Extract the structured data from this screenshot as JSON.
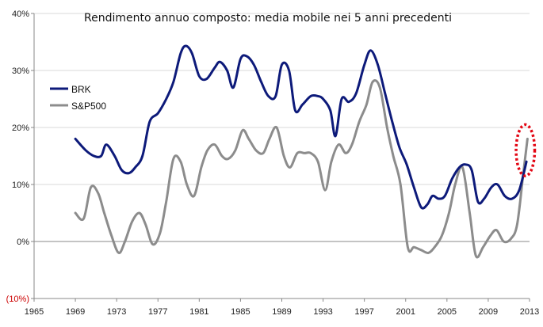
{
  "chart_data": {
    "type": "line",
    "title": "Rendimento annuo composto: media mobile nei 5 anni precedenti",
    "xlim": [
      1965,
      2013
    ],
    "ylim": [
      -10,
      40
    ],
    "x_ticks": [
      1965,
      1969,
      1973,
      1977,
      1981,
      1985,
      1989,
      1993,
      1997,
      2001,
      2005,
      2009,
      2013
    ],
    "y_ticks": [
      {
        "value": 40,
        "label": "40%"
      },
      {
        "value": 30,
        "label": "30%"
      },
      {
        "value": 20,
        "label": "20%"
      },
      {
        "value": 10,
        "label": "10%"
      },
      {
        "value": 0,
        "label": "0%"
      },
      {
        "value": -10,
        "label": "(10%)"
      }
    ],
    "legend_position": "top-left",
    "series": [
      {
        "name": "BRK",
        "color": "#0d1a7a",
        "x": [
          1969,
          1970,
          1970.8,
          1971.5,
          1972,
          1972.8,
          1973.5,
          1974.2,
          1974.8,
          1975.5,
          1976.2,
          1977,
          1977.8,
          1978.5,
          1979.2,
          1979.7,
          1980.3,
          1981,
          1981.7,
          1982.5,
          1983,
          1983.7,
          1984.3,
          1985,
          1985.6,
          1986.3,
          1987,
          1987.7,
          1988.4,
          1989,
          1989.7,
          1990.3,
          1991,
          1991.8,
          1992.5,
          1993,
          1993.7,
          1994.2,
          1994.8,
          1995.5,
          1996.2,
          1997,
          1997.6,
          1998.3,
          1999,
          1999.7,
          2000.4,
          2001.1,
          2001.8,
          2002.5,
          2003.1,
          2003.6,
          2004.2,
          2004.8,
          2005.5,
          2006.2,
          2006.8,
          2007.4,
          2008,
          2008.6,
          2009.3,
          2009.9,
          2010.6,
          2011.3,
          2012,
          2012.7
        ],
        "values": [
          18,
          16,
          15,
          15,
          17,
          15,
          12.5,
          12,
          13,
          15,
          21,
          22.5,
          25,
          28,
          33,
          34.3,
          33,
          29,
          28.5,
          30.5,
          31.5,
          30,
          27,
          32,
          32.5,
          31,
          28,
          25.5,
          25.5,
          31,
          30,
          23,
          24,
          25.5,
          25.5,
          25,
          23,
          18.5,
          25,
          24.5,
          26,
          31,
          33.5,
          31,
          26,
          21,
          16.5,
          13.5,
          9.5,
          6,
          6.5,
          8,
          7.5,
          8,
          11,
          13,
          13.5,
          12.5,
          7,
          7.5,
          9.5,
          10,
          8,
          7.5,
          9,
          14
        ]
      },
      {
        "name": "S&P500",
        "color": "#8c8c8c",
        "x": [
          1969,
          1969.8,
          1970.5,
          1971.2,
          1971.8,
          1972.5,
          1973.2,
          1973.8,
          1974.5,
          1975.2,
          1975.8,
          1976.5,
          1977.2,
          1977.8,
          1978.5,
          1979.2,
          1979.8,
          1980.5,
          1981.2,
          1981.8,
          1982.5,
          1983.2,
          1983.8,
          1984.5,
          1985.2,
          1985.8,
          1986.5,
          1987.2,
          1987.8,
          1988.5,
          1989.2,
          1989.8,
          1990.5,
          1991.2,
          1991.8,
          1992.5,
          1993.2,
          1993.8,
          1994.5,
          1995.2,
          1995.8,
          1996.5,
          1997.2,
          1997.8,
          1998.5,
          1999.2,
          1999.8,
          2000.5,
          2001.2,
          2001.8,
          2002.5,
          2003.2,
          2003.8,
          2004.5,
          2005.2,
          2005.8,
          2006.5,
          2007.2,
          2007.8,
          2008.5,
          2009.2,
          2009.8,
          2010.5,
          2011.2,
          2011.8,
          2012.4,
          2012.8
        ],
        "values": [
          5,
          4,
          9.5,
          8.5,
          5,
          1,
          -2,
          0,
          3.5,
          5,
          3,
          -0.5,
          1.5,
          7,
          14.5,
          14,
          10,
          8,
          13,
          16,
          17,
          15,
          14.5,
          16,
          19.5,
          18,
          16,
          15.5,
          18,
          20,
          15,
          13,
          15.5,
          15.5,
          15.5,
          14,
          9,
          14,
          17,
          15.5,
          17,
          21,
          24,
          28,
          27,
          20,
          15,
          10,
          -1,
          -1,
          -1.5,
          -2,
          -1,
          1,
          5,
          10,
          13,
          5,
          -2.5,
          -1,
          1,
          2,
          0,
          0.5,
          3,
          12,
          18
        ]
      }
    ],
    "annotations": [
      {
        "type": "ellipse",
        "style": "dotted",
        "color": "#e30613",
        "x_center": 2012.6,
        "y_center": 16,
        "x_half_range": 0.9,
        "y_half_range": 4.5
      }
    ]
  }
}
